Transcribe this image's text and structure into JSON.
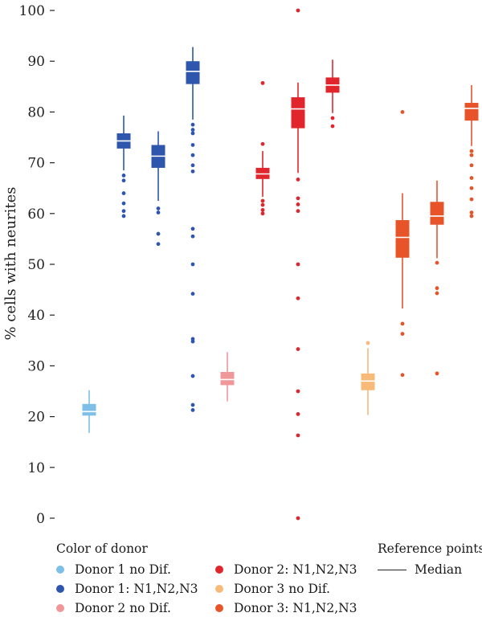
{
  "chart_data": {
    "type": "boxplot",
    "ylabel": "% cells with neurites",
    "ylim": [
      0,
      100
    ],
    "yticks": [
      0,
      10,
      20,
      30,
      40,
      50,
      60,
      70,
      80,
      90,
      100
    ],
    "legend_title": "Color of donor",
    "reference_title": "Reference points:",
    "reference_median_label": "Median",
    "groups": [
      {
        "name": "Donor 1 no Dif.",
        "color": "#7dbfe6"
      },
      {
        "name": "Donor 1: N1,N2,N3",
        "color": "#2f56ad"
      },
      {
        "name": "Donor 2 no Dif.",
        "color": "#f0979a"
      },
      {
        "name": "Donor 2: N1,N2,N3",
        "color": "#e0262c"
      },
      {
        "name": "Donor 3 no Dif.",
        "color": "#f7ba78"
      },
      {
        "name": "Donor 3: N1,N2,N3",
        "color": "#e8542a"
      }
    ],
    "boxes": [
      {
        "group": 0,
        "q1": 20.2,
        "median": 21.0,
        "q3": 22.5,
        "whisker_low": 16.8,
        "whisker_high": 25.2,
        "outliers": []
      },
      {
        "group": 1,
        "q1": 72.8,
        "median": 74.3,
        "q3": 75.8,
        "whisker_low": 68.5,
        "whisker_high": 79.3,
        "outliers": [
          67.5,
          66.5,
          64.0,
          62.0,
          60.5,
          59.5
        ]
      },
      {
        "group": 1,
        "q1": 69.0,
        "median": 71.3,
        "q3": 73.5,
        "whisker_low": 62.5,
        "whisker_high": 76.2,
        "outliers": [
          61.0,
          60.2,
          56.0,
          54.0
        ]
      },
      {
        "group": 1,
        "q1": 85.5,
        "median": 88.0,
        "q3": 90.0,
        "whisker_low": 78.5,
        "whisker_high": 92.8,
        "outliers": [
          77.5,
          76.5,
          75.8,
          73.5,
          71.5,
          69.5,
          68.3,
          57.0,
          55.5,
          50.0,
          44.2,
          35.3,
          34.8,
          28.0,
          22.3,
          21.3
        ]
      },
      {
        "group": 2,
        "q1": 26.2,
        "median": 27.3,
        "q3": 28.8,
        "whisker_low": 23.0,
        "whisker_high": 32.7,
        "outliers": []
      },
      {
        "group": 3,
        "q1": 66.8,
        "median": 67.8,
        "q3": 69.0,
        "whisker_low": 63.3,
        "whisker_high": 72.3,
        "outliers": [
          85.7,
          73.7,
          62.5,
          61.7,
          60.7,
          60.0
        ]
      },
      {
        "group": 3,
        "q1": 76.8,
        "median": 80.6,
        "q3": 82.9,
        "whisker_low": 68.0,
        "whisker_high": 85.8,
        "outliers": [
          100.0,
          66.7,
          63.0,
          61.8,
          60.5,
          50.0,
          43.3,
          33.3,
          25.0,
          20.5,
          16.3,
          0.0
        ]
      },
      {
        "group": 3,
        "q1": 83.8,
        "median": 85.3,
        "q3": 86.8,
        "whisker_low": 79.8,
        "whisker_high": 90.3,
        "outliers": [
          78.8,
          77.2
        ]
      },
      {
        "group": 4,
        "q1": 25.2,
        "median": 27.0,
        "q3": 28.5,
        "whisker_low": 20.3,
        "whisker_high": 33.5,
        "outliers": [
          34.5
        ]
      },
      {
        "group": 5,
        "q1": 51.3,
        "median": 55.3,
        "q3": 58.7,
        "whisker_low": 41.3,
        "whisker_high": 64.0,
        "outliers": [
          80.0,
          38.3,
          36.3,
          28.2
        ]
      },
      {
        "group": 5,
        "q1": 57.8,
        "median": 59.5,
        "q3": 62.3,
        "whisker_low": 51.2,
        "whisker_high": 66.5,
        "outliers": [
          50.3,
          45.3,
          44.3,
          28.5
        ]
      },
      {
        "group": 5,
        "q1": 78.3,
        "median": 80.7,
        "q3": 81.8,
        "whisker_low": 73.3,
        "whisker_high": 85.3,
        "outliers": [
          72.3,
          71.5,
          69.5,
          67.0,
          65.0,
          62.8,
          60.2,
          59.5
        ]
      }
    ]
  }
}
